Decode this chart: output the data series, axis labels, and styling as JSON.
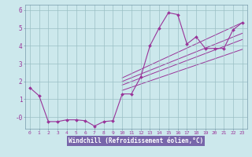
{
  "xlabel": "Windchill (Refroidissement éolien,°C)",
  "bg_color": "#cce8ec",
  "grid_color": "#9bbfc4",
  "line_color": "#993399",
  "axis_label_bg": "#7777aa",
  "xlim": [
    -0.5,
    23.5
  ],
  "ylim": [
    -0.65,
    6.3
  ],
  "xticks": [
    0,
    1,
    2,
    3,
    4,
    5,
    6,
    7,
    8,
    9,
    10,
    11,
    12,
    13,
    14,
    15,
    16,
    17,
    18,
    19,
    20,
    21,
    22,
    23
  ],
  "yticks": [
    0,
    1,
    2,
    3,
    4,
    5,
    6
  ],
  "ytick_labels": [
    "-0",
    "1",
    "2",
    "3",
    "4",
    "5",
    "6"
  ],
  "series1_x": [
    0,
    1,
    2,
    3,
    4,
    5,
    6,
    7,
    8,
    9,
    10,
    11,
    12,
    13,
    14,
    15,
    16,
    17,
    18,
    19,
    20,
    21,
    22,
    23
  ],
  "series1_y": [
    1.65,
    1.2,
    -0.25,
    -0.25,
    -0.15,
    -0.15,
    -0.2,
    -0.5,
    -0.25,
    -0.2,
    1.3,
    1.3,
    2.25,
    4.0,
    5.0,
    5.85,
    5.75,
    4.1,
    4.5,
    3.85,
    3.85,
    3.85,
    4.9,
    5.3
  ],
  "trend_lines": [
    {
      "x": [
        10,
        23
      ],
      "y": [
        2.2,
        5.3
      ]
    },
    {
      "x": [
        10,
        23
      ],
      "y": [
        2.0,
        4.7
      ]
    },
    {
      "x": [
        10,
        23
      ],
      "y": [
        1.8,
        4.35
      ]
    },
    {
      "x": [
        10,
        23
      ],
      "y": [
        1.5,
        3.8
      ]
    }
  ]
}
